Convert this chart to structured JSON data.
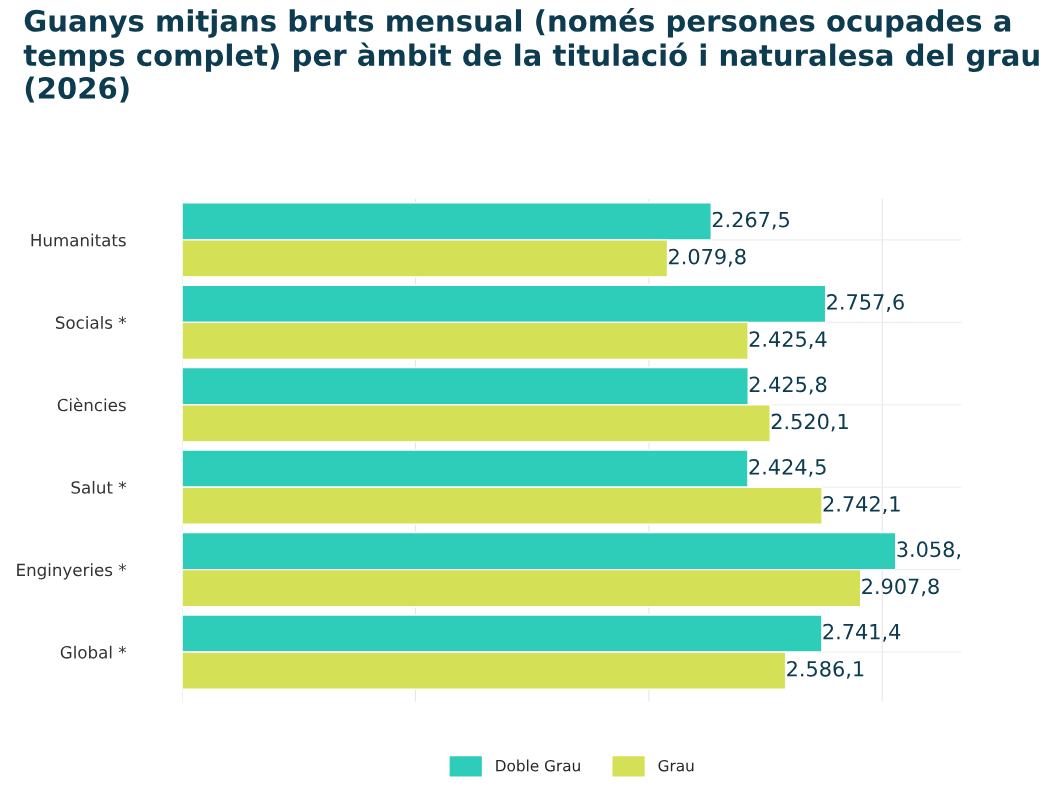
{
  "chart_data": {
    "type": "bar",
    "orientation": "horizontal",
    "title": "Guanys mitjans bruts mensual (només persones ocupades a temps complet) per àmbit de la titulació i naturalesa del grau (2026)",
    "categories": [
      "Humanitats",
      "Socials *",
      "Ciències",
      "Salut *",
      "Enginyeries *",
      "Global *"
    ],
    "series": [
      {
        "name": "Doble Grau",
        "color": "#2ecdb9",
        "values": [
          2267.5,
          2757.6,
          2425.8,
          2424.5,
          3058,
          2741.4
        ],
        "value_labels": [
          "2.267,5",
          "2.757,6",
          "2.425,8",
          "2.424,5",
          "3.058,",
          "2.741,4"
        ]
      },
      {
        "name": "Grau",
        "color": "#d4e157",
        "values": [
          2079.8,
          2425.4,
          2520.1,
          2742.1,
          2907.8,
          2586.1
        ],
        "value_labels": [
          "2.079,8",
          "2.425,4",
          "2.520,1",
          "2.742,1",
          "2.907,8",
          "2.586,1"
        ]
      }
    ],
    "xlim": [
      0,
      3340
    ],
    "xticks": [
      {
        "value": 0,
        "label": null
      },
      {
        "value": 1000,
        "label": null
      },
      {
        "value": 2000,
        "label": null
      },
      {
        "value": 3000,
        "label": null
      }
    ],
    "tick_labels": "y",
    "grid": true,
    "legend": "bottom"
  }
}
